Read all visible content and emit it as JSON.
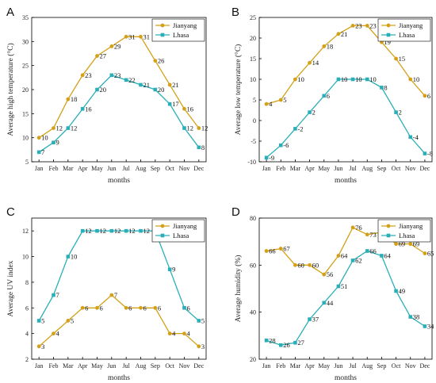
{
  "colors": {
    "jianyang": "#D4A017",
    "lhasa": "#2AAFB8"
  },
  "chart_data": [
    {
      "panel": "A",
      "type": "line",
      "categories": [
        "Jan",
        "Feb",
        "Mar",
        "Apr",
        "May",
        "Jun",
        "Jul",
        "Aug",
        "Sep",
        "Oct",
        "Nov",
        "Dec"
      ],
      "series": [
        {
          "name": "Jianyang",
          "values": [
            10,
            12,
            18,
            23,
            27,
            29,
            31,
            31,
            26,
            21,
            16,
            12
          ]
        },
        {
          "name": "Lhasa",
          "values": [
            7,
            9,
            12,
            16,
            20,
            23,
            22,
            21,
            20,
            17,
            12,
            8
          ]
        }
      ],
      "xlabel": "months",
      "ylabel": "Average high temperature (°C)",
      "ylim": [
        5,
        35
      ],
      "yticks": [
        5,
        10,
        15,
        20,
        25,
        30,
        35
      ],
      "legend": "top-right"
    },
    {
      "panel": "B",
      "type": "line",
      "categories": [
        "Jan",
        "Feb",
        "Mar",
        "Apr",
        "May",
        "Jun",
        "Jul",
        "Aug",
        "Sep",
        "Oct",
        "Nov",
        "Dec"
      ],
      "series": [
        {
          "name": "Jianyang",
          "values": [
            4,
            5,
            10,
            14,
            18,
            21,
            23,
            23,
            19,
            15,
            10,
            6
          ]
        },
        {
          "name": "Lhasa",
          "values": [
            -9,
            -6,
            -2,
            2,
            6,
            10,
            10,
            10,
            8,
            2,
            -4,
            -8
          ]
        }
      ],
      "xlabel": "months",
      "ylabel": "Average low temperature (°C)",
      "ylim": [
        -10,
        25
      ],
      "yticks": [
        -10,
        -5,
        0,
        5,
        10,
        15,
        20,
        25
      ],
      "legend": "top-right"
    },
    {
      "panel": "C",
      "type": "line",
      "categories": [
        "Jan",
        "Feb",
        "Mar",
        "Apr",
        "May",
        "Jun",
        "Jul",
        "Aug",
        "Sep",
        "Oct",
        "Nov",
        "Dec"
      ],
      "series": [
        {
          "name": "Jianyang",
          "values": [
            3,
            4,
            5,
            6,
            6,
            7,
            6,
            6,
            6,
            4,
            4,
            3
          ]
        },
        {
          "name": "Lhasa",
          "values": [
            5,
            7,
            10,
            12,
            12,
            12,
            12,
            12,
            12,
            9,
            6,
            5
          ]
        }
      ],
      "xlabel": "months",
      "ylabel": "Average UV index",
      "ylim": [
        2,
        13
      ],
      "yticks": [
        2,
        4,
        6,
        8,
        10,
        12
      ],
      "legend": "top-right"
    },
    {
      "panel": "D",
      "type": "line",
      "categories": [
        "Jan",
        "Feb",
        "Mar",
        "Apr",
        "May",
        "Jun",
        "Jul",
        "Aug",
        "Sep",
        "Oct",
        "Nov",
        "Dec"
      ],
      "series": [
        {
          "name": "Jianyang",
          "values": [
            66,
            67,
            60,
            60,
            56,
            64,
            76,
            73,
            74,
            69,
            69,
            65
          ]
        },
        {
          "name": "Lhasa",
          "values": [
            28,
            26,
            27,
            37,
            44,
            51,
            62,
            66,
            64,
            49,
            38,
            34
          ]
        }
      ],
      "xlabel": "months",
      "ylabel": "Average humidity (%)",
      "ylim": [
        20,
        80
      ],
      "yticks": [
        20,
        40,
        60,
        80
      ],
      "legend": "top-right"
    }
  ]
}
